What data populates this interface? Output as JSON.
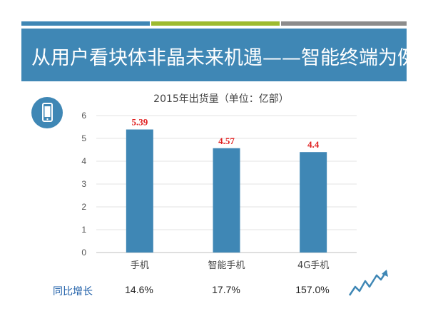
{
  "slide": {
    "title": "从用户看块体非晶未来机遇——智能终端为例"
  },
  "growth": {
    "label": "同比增长",
    "values": [
      "14.6%",
      "17.7%",
      "157.0%"
    ]
  },
  "icons": {
    "badge": "smartphone-icon",
    "trend": "upward-trend-arrow-icon"
  },
  "colors": {
    "accent": "#3f87b5",
    "green": "#9dbb2f",
    "gray": "#8c8c8c",
    "data_label": "#e02020"
  },
  "chart_data": {
    "type": "bar",
    "title": "2015年出货量（单位：亿部）",
    "categories": [
      "手机",
      "智能手机",
      "4G手机"
    ],
    "values": [
      5.39,
      4.57,
      4.4
    ],
    "data_labels": [
      "5.39",
      "4.57",
      "4.4"
    ],
    "ylim": [
      0,
      6
    ],
    "yticks": [
      "0",
      "1",
      "2",
      "3",
      "4",
      "5",
      "6"
    ],
    "grid": true,
    "xlabel": "",
    "ylabel": ""
  }
}
